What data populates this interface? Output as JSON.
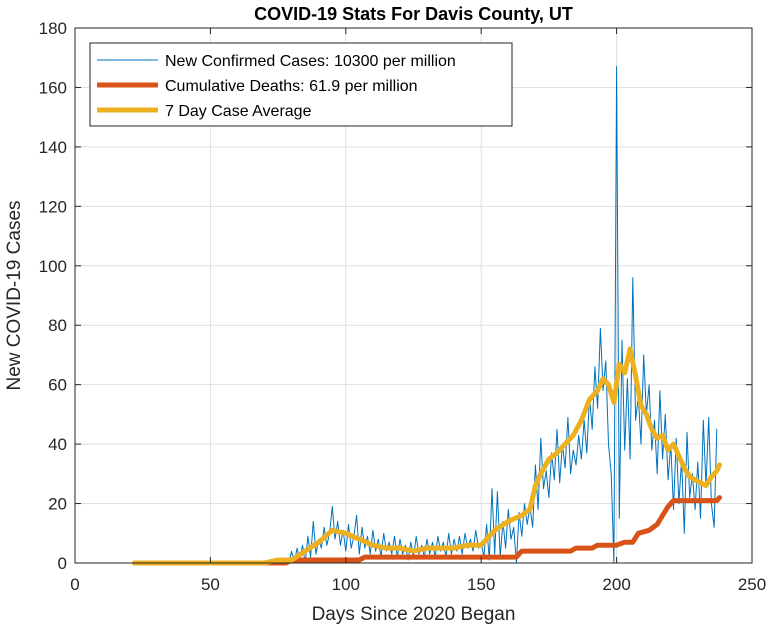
{
  "chart_data": {
    "type": "line",
    "title": "COVID-19 Stats For Davis County, UT",
    "xlabel": "Days Since 2020 Began",
    "ylabel": "New COVID-19 Cases",
    "xlim": [
      0,
      250
    ],
    "ylim": [
      0,
      180
    ],
    "x_ticks": [
      0,
      50,
      100,
      150,
      200,
      250
    ],
    "y_ticks": [
      0,
      20,
      40,
      60,
      80,
      100,
      120,
      140,
      160,
      180
    ],
    "grid": true,
    "legend_position": "top-left",
    "series": [
      {
        "name": "New Confirmed Cases: 10300 per million",
        "color": "#0072BD",
        "line_width": "thin",
        "points": [
          [
            22,
            0
          ],
          [
            30,
            0
          ],
          [
            40,
            0
          ],
          [
            50,
            0
          ],
          [
            60,
            0
          ],
          [
            65,
            0
          ],
          [
            70,
            0
          ],
          [
            73,
            1
          ],
          [
            75,
            0
          ],
          [
            77,
            1
          ],
          [
            79,
            0
          ],
          [
            80,
            4
          ],
          [
            81,
            0
          ],
          [
            82,
            5
          ],
          [
            83,
            1
          ],
          [
            84,
            6
          ],
          [
            85,
            0
          ],
          [
            86,
            9
          ],
          [
            87,
            2
          ],
          [
            88,
            14
          ],
          [
            89,
            3
          ],
          [
            90,
            8
          ],
          [
            91,
            5
          ],
          [
            92,
            12
          ],
          [
            93,
            6
          ],
          [
            94,
            10
          ],
          [
            95,
            19
          ],
          [
            96,
            8
          ],
          [
            97,
            14
          ],
          [
            98,
            6
          ],
          [
            99,
            11
          ],
          [
            100,
            4
          ],
          [
            101,
            13
          ],
          [
            102,
            5
          ],
          [
            103,
            9
          ],
          [
            104,
            16
          ],
          [
            105,
            3
          ],
          [
            106,
            12
          ],
          [
            107,
            5
          ],
          [
            108,
            9
          ],
          [
            109,
            3
          ],
          [
            110,
            11
          ],
          [
            111,
            4
          ],
          [
            112,
            8
          ],
          [
            113,
            2
          ],
          [
            114,
            10
          ],
          [
            115,
            4
          ],
          [
            116,
            7
          ],
          [
            117,
            3
          ],
          [
            118,
            9
          ],
          [
            119,
            2
          ],
          [
            120,
            8
          ],
          [
            121,
            3
          ],
          [
            122,
            6
          ],
          [
            123,
            1
          ],
          [
            124,
            7
          ],
          [
            125,
            2
          ],
          [
            126,
            9
          ],
          [
            127,
            3
          ],
          [
            128,
            6
          ],
          [
            129,
            2
          ],
          [
            130,
            8
          ],
          [
            131,
            3
          ],
          [
            132,
            7
          ],
          [
            133,
            2
          ],
          [
            134,
            9
          ],
          [
            135,
            4
          ],
          [
            136,
            7
          ],
          [
            137,
            2
          ],
          [
            138,
            10
          ],
          [
            139,
            3
          ],
          [
            140,
            8
          ],
          [
            141,
            4
          ],
          [
            142,
            9
          ],
          [
            143,
            3
          ],
          [
            144,
            10
          ],
          [
            145,
            5
          ],
          [
            146,
            8
          ],
          [
            147,
            4
          ],
          [
            148,
            11
          ],
          [
            149,
            5
          ],
          [
            150,
            7
          ],
          [
            151,
            2
          ],
          [
            152,
            13
          ],
          [
            153,
            1
          ],
          [
            154,
            25
          ],
          [
            155,
            3
          ],
          [
            156,
            24
          ],
          [
            157,
            2
          ],
          [
            158,
            14
          ],
          [
            159,
            5
          ],
          [
            160,
            18
          ],
          [
            161,
            8
          ],
          [
            162,
            12
          ],
          [
            163,
            0
          ],
          [
            164,
            17
          ],
          [
            165,
            9
          ],
          [
            166,
            20
          ],
          [
            167,
            13
          ],
          [
            168,
            19
          ],
          [
            169,
            12
          ],
          [
            170,
            33
          ],
          [
            171,
            18
          ],
          [
            172,
            42
          ],
          [
            173,
            25
          ],
          [
            174,
            31
          ],
          [
            175,
            22
          ],
          [
            176,
            37
          ],
          [
            177,
            28
          ],
          [
            178,
            45
          ],
          [
            179,
            27
          ],
          [
            180,
            40
          ],
          [
            181,
            32
          ],
          [
            182,
            49
          ],
          [
            183,
            30
          ],
          [
            184,
            38
          ],
          [
            185,
            33
          ],
          [
            186,
            43
          ],
          [
            187,
            35
          ],
          [
            188,
            48
          ],
          [
            189,
            37
          ],
          [
            190,
            56
          ],
          [
            191,
            45
          ],
          [
            192,
            66
          ],
          [
            193,
            52
          ],
          [
            194,
            79
          ],
          [
            195,
            58
          ],
          [
            196,
            68
          ],
          [
            197,
            40
          ],
          [
            198,
            30
          ],
          [
            199,
            0
          ],
          [
            200,
            167
          ],
          [
            201,
            15
          ],
          [
            202,
            75
          ],
          [
            203,
            38
          ],
          [
            204,
            62
          ],
          [
            205,
            35
          ],
          [
            206,
            96
          ],
          [
            207,
            48
          ],
          [
            208,
            56
          ],
          [
            209,
            40
          ],
          [
            210,
            70
          ],
          [
            211,
            50
          ],
          [
            212,
            60
          ],
          [
            213,
            38
          ],
          [
            214,
            48
          ],
          [
            215,
            30
          ],
          [
            216,
            58
          ],
          [
            217,
            35
          ],
          [
            218,
            50
          ],
          [
            219,
            28
          ],
          [
            220,
            40
          ],
          [
            221,
            18
          ],
          [
            222,
            42
          ],
          [
            223,
            20
          ],
          [
            224,
            35
          ],
          [
            225,
            10
          ],
          [
            226,
            44
          ],
          [
            227,
            22
          ],
          [
            228,
            30
          ],
          [
            229,
            18
          ],
          [
            230,
            34
          ],
          [
            231,
            15
          ],
          [
            232,
            48
          ],
          [
            233,
            26
          ],
          [
            234,
            49
          ],
          [
            235,
            20
          ],
          [
            236,
            12
          ],
          [
            237,
            45
          ]
        ]
      },
      {
        "name": "Cumulative Deaths: 61.9 per million",
        "color": "#D95319",
        "line_width": "thick",
        "points": [
          [
            22,
            0
          ],
          [
            70,
            0
          ],
          [
            78,
            0
          ],
          [
            80,
            1
          ],
          [
            105,
            1
          ],
          [
            107,
            2
          ],
          [
            163,
            2
          ],
          [
            165,
            4
          ],
          [
            183,
            4
          ],
          [
            185,
            5
          ],
          [
            191,
            5
          ],
          [
            193,
            6
          ],
          [
            200,
            6
          ],
          [
            203,
            7
          ],
          [
            206,
            7
          ],
          [
            208,
            10
          ],
          [
            212,
            11
          ],
          [
            215,
            13
          ],
          [
            217,
            16
          ],
          [
            219,
            19
          ],
          [
            221,
            21
          ],
          [
            237,
            21
          ],
          [
            238,
            22
          ]
        ]
      },
      {
        "name": "7 Day Case Average",
        "color": "#EDB120",
        "line_width": "thick",
        "points": [
          [
            22,
            0
          ],
          [
            60,
            0
          ],
          [
            70,
            0
          ],
          [
            75,
            1
          ],
          [
            80,
            1
          ],
          [
            85,
            4
          ],
          [
            90,
            7
          ],
          [
            95,
            11
          ],
          [
            100,
            10
          ],
          [
            105,
            8
          ],
          [
            110,
            6
          ],
          [
            115,
            5
          ],
          [
            120,
            5
          ],
          [
            125,
            4
          ],
          [
            130,
            5
          ],
          [
            135,
            5
          ],
          [
            140,
            5
          ],
          [
            145,
            6
          ],
          [
            150,
            6
          ],
          [
            155,
            11
          ],
          [
            160,
            14
          ],
          [
            165,
            16
          ],
          [
            168,
            18
          ],
          [
            170,
            26
          ],
          [
            172,
            30
          ],
          [
            175,
            35
          ],
          [
            178,
            37
          ],
          [
            181,
            40
          ],
          [
            184,
            43
          ],
          [
            187,
            48
          ],
          [
            190,
            55
          ],
          [
            193,
            58
          ],
          [
            195,
            62
          ],
          [
            197,
            60
          ],
          [
            199,
            54
          ],
          [
            201,
            67
          ],
          [
            203,
            64
          ],
          [
            205,
            72
          ],
          [
            207,
            63
          ],
          [
            209,
            53
          ],
          [
            211,
            50
          ],
          [
            213,
            45
          ],
          [
            215,
            42
          ],
          [
            217,
            43
          ],
          [
            219,
            38
          ],
          [
            221,
            40
          ],
          [
            223,
            36
          ],
          [
            225,
            32
          ],
          [
            227,
            29
          ],
          [
            229,
            28
          ],
          [
            231,
            27
          ],
          [
            233,
            26
          ],
          [
            235,
            29
          ],
          [
            237,
            31
          ],
          [
            238,
            33
          ]
        ]
      }
    ]
  }
}
